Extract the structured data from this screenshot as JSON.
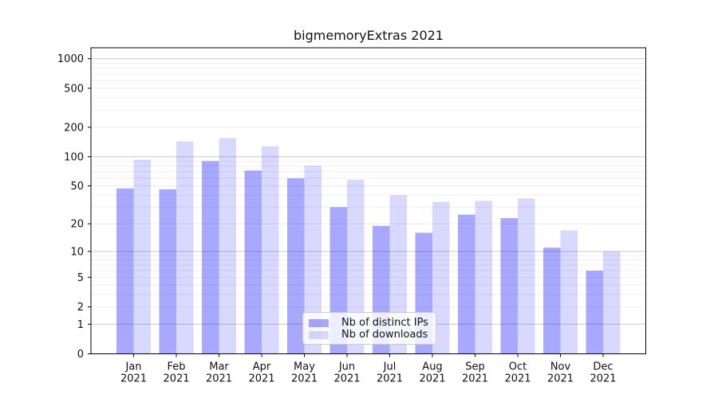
{
  "page": {
    "background": "#ffffff"
  },
  "chart_data": {
    "type": "bar",
    "title": "bigmemoryExtras 2021",
    "xlabel": "",
    "ylabel": "",
    "yscale": "log1p",
    "grid": "both",
    "y_ticks": [
      0,
      1,
      2,
      5,
      10,
      20,
      50,
      100,
      200,
      500,
      1000
    ],
    "ylim": [
      0,
      1292
    ],
    "categories": [
      "Jan",
      "Feb",
      "Mar",
      "Apr",
      "May",
      "Jun",
      "Jul",
      "Aug",
      "Sep",
      "Oct",
      "Nov",
      "Dec"
    ],
    "category_year": "2021",
    "series": [
      {
        "name": "Nb of distinct IPs",
        "color": "#0000ff",
        "alpha": 0.34,
        "rendered_color": "#a8a8f8",
        "values": [
          47,
          46,
          90,
          72,
          60,
          30,
          19,
          16,
          25,
          23,
          11,
          6
        ]
      },
      {
        "name": "Nb of downloads",
        "color": "#0000ff",
        "alpha": 0.15,
        "rendered_color": "#d9d9fb",
        "values": [
          93,
          143,
          155,
          128,
          81,
          58,
          40,
          34,
          35,
          37,
          17,
          10
        ]
      }
    ],
    "legend": {
      "position": "lower center",
      "items": [
        "Nb of distinct IPs",
        "Nb of downloads"
      ]
    },
    "colors": {
      "grid_major": "#c9c9c9",
      "grid_minor": "#ededed",
      "spine": "#000000",
      "text": "#111111"
    }
  }
}
